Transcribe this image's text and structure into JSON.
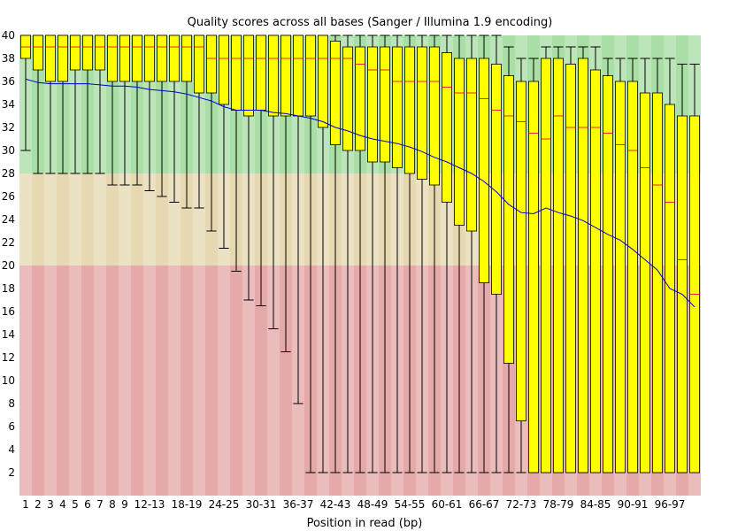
{
  "chart_data": {
    "type": "box",
    "title": "Quality scores across all bases (Sanger / Illumina 1.9 encoding)",
    "xlabel": "Position in read (bp)",
    "ylabel": "",
    "ylim": [
      0,
      40
    ],
    "yticks": [
      2,
      4,
      6,
      8,
      10,
      12,
      14,
      16,
      18,
      20,
      22,
      24,
      26,
      28,
      30,
      32,
      34,
      36,
      38,
      40
    ],
    "zones": [
      {
        "from": 28,
        "to": 40,
        "color": "#a9dfa6"
      },
      {
        "from": 20,
        "to": 28,
        "color": "#e6d9b2"
      },
      {
        "from": 0,
        "to": 20,
        "color": "#e5a9a9"
      }
    ],
    "colors": {
      "box_fill": "#ffff00",
      "box_stroke": "#000000",
      "median": "#e8262b",
      "mean_line": "#0000cc",
      "whisker": "#000000"
    },
    "categories": [
      "1",
      "2",
      "3",
      "4",
      "5",
      "6",
      "7",
      "8",
      "9",
      "10-11",
      "12-13",
      "14-15",
      "16-17",
      "18-19",
      "20-21",
      "22-23",
      "24-25",
      "26-27",
      "28-29",
      "30-31",
      "32-33",
      "34-35",
      "36-37",
      "38-39",
      "40-41",
      "42-43",
      "44-45",
      "46-47",
      "48-49",
      "50-51",
      "52-53",
      "54-55",
      "56-57",
      "58-59",
      "60-61",
      "62-63",
      "64-65",
      "66-67",
      "68-69",
      "70-71",
      "72-73",
      "74-75",
      "76-77",
      "78-79",
      "80-81",
      "82-83",
      "84-85",
      "86-87",
      "88-89",
      "90-91",
      "92-93",
      "94-95",
      "96-97",
      "98-99",
      "100-101"
    ],
    "tick_labels": [
      "1",
      "2",
      "3",
      "4",
      "5",
      "6",
      "7",
      "8",
      "9",
      "12-13",
      "18-19",
      "24-25",
      "30-31",
      "36-37",
      "42-43",
      "48-49",
      "54-55",
      "60-61",
      "66-67",
      "72-73",
      "78-79",
      "84-85",
      "90-91",
      "96-97"
    ],
    "q1": [
      38,
      37,
      36,
      36,
      37,
      37,
      37,
      36,
      36,
      36,
      36,
      36,
      36,
      36,
      35,
      35,
      34,
      33.5,
      33,
      33.5,
      33,
      33,
      33,
      33,
      32,
      30.5,
      30,
      30,
      29,
      29,
      28.5,
      28,
      27.5,
      27,
      25.5,
      23.5,
      23,
      18.5,
      17.5,
      11.5,
      6.5,
      2,
      2,
      2,
      2,
      2,
      2,
      2,
      2,
      2,
      2,
      2,
      2,
      2,
      2
    ],
    "median": [
      39,
      39,
      39,
      39,
      39,
      39,
      39,
      39,
      39,
      39,
      39,
      39,
      39,
      39,
      39,
      38,
      38,
      38,
      38,
      38,
      38,
      38,
      38,
      38,
      38,
      38,
      38,
      37.5,
      37,
      37,
      36,
      36,
      36,
      36,
      35.5,
      35,
      35,
      34.5,
      33.5,
      33,
      32.5,
      31.5,
      31,
      33,
      32,
      32,
      32,
      31.5,
      30.5,
      30,
      28.5,
      27,
      25.5,
      20.5,
      17.5
    ],
    "q3": [
      40,
      40,
      40,
      40,
      40,
      40,
      40,
      40,
      40,
      40,
      40,
      40,
      40,
      40,
      40,
      40,
      40,
      40,
      40,
      40,
      40,
      40,
      40,
      40,
      40,
      39.5,
      39,
      39,
      39,
      39,
      39,
      39,
      39,
      39,
      38.5,
      38,
      38,
      38,
      37.5,
      36.5,
      36,
      36,
      38,
      38,
      37.5,
      38,
      37,
      36.5,
      36,
      36,
      35,
      35,
      34,
      33,
      33
    ],
    "low": [
      30,
      28,
      28,
      28,
      28,
      28,
      28,
      27,
      27,
      27,
      26.5,
      26,
      25.5,
      25,
      25,
      23,
      21.5,
      19.5,
      17,
      16.5,
      14.5,
      12.5,
      8,
      2,
      2,
      2,
      2,
      2,
      2,
      2,
      2,
      2,
      2,
      2,
      2,
      2,
      2,
      2,
      2,
      2,
      2,
      2,
      2,
      2,
      2,
      2,
      2,
      2,
      2,
      2,
      2,
      2,
      2,
      2,
      2
    ],
    "high": [
      40,
      40,
      40,
      40,
      40,
      40,
      40,
      40,
      40,
      40,
      40,
      40,
      40,
      40,
      40,
      40,
      40,
      40,
      40,
      40,
      40,
      40,
      40,
      40,
      40,
      40,
      40,
      40,
      40,
      40,
      40,
      40,
      40,
      40,
      40,
      40,
      40,
      40,
      40,
      39,
      38,
      38,
      39,
      39,
      39,
      39,
      39,
      38,
      38,
      38,
      38,
      38,
      38,
      37.5,
      37.5
    ],
    "mean": [
      36.2,
      35.9,
      35.8,
      35.8,
      35.8,
      35.8,
      35.7,
      35.6,
      35.6,
      35.5,
      35.3,
      35.2,
      35.1,
      34.9,
      34.6,
      34.3,
      33.8,
      33.5,
      33.5,
      33.5,
      33.3,
      33.2,
      33.0,
      32.8,
      32.5,
      32.0,
      31.7,
      31.3,
      31.0,
      30.8,
      30.6,
      30.3,
      29.9,
      29.4,
      29.0,
      28.5,
      28.0,
      27.3,
      26.4,
      25.3,
      24.6,
      24.5,
      25.0,
      24.6,
      24.3,
      23.9,
      23.3,
      22.7,
      22.2,
      21.4,
      20.5,
      19.6,
      18.0,
      17.5,
      16.4
    ]
  }
}
